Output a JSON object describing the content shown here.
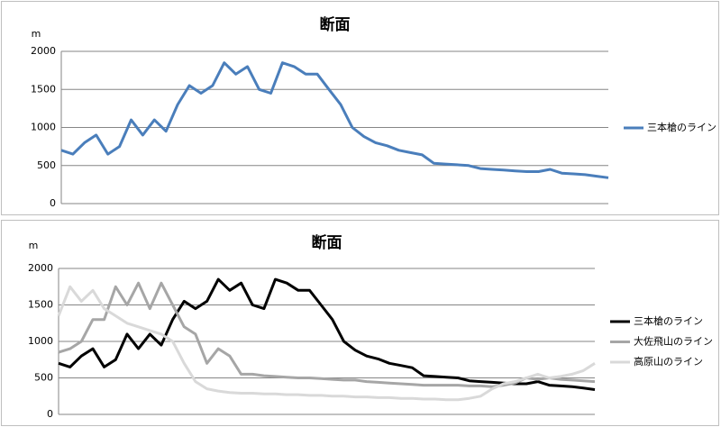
{
  "chart_data": [
    {
      "type": "line",
      "title": "断面",
      "y_label": "m",
      "ylim": [
        0,
        2000
      ],
      "yticks": [
        0,
        500,
        1000,
        1500,
        2000
      ],
      "grid": true,
      "legend": "right",
      "series": [
        {
          "name": "三本槍のライン",
          "color": "#4a7ebb",
          "values": [
            700,
            650,
            800,
            900,
            650,
            750,
            1100,
            900,
            1100,
            950,
            1300,
            1550,
            1450,
            1550,
            1850,
            1700,
            1800,
            1500,
            1450,
            1850,
            1800,
            1700,
            1700,
            1500,
            1300,
            1000,
            880,
            800,
            760,
            700,
            670,
            640,
            530,
            520,
            510,
            500,
            460,
            450,
            440,
            430,
            420,
            420,
            450,
            400,
            390,
            380,
            360,
            340
          ]
        }
      ]
    },
    {
      "type": "line",
      "title": "断面",
      "y_label": "m",
      "ylim": [
        0,
        2000
      ],
      "yticks": [
        0,
        500,
        1000,
        1500,
        2000
      ],
      "grid": true,
      "legend": "right",
      "series": [
        {
          "name": "三本槍のライン",
          "color": "#000000",
          "values": [
            700,
            650,
            800,
            900,
            650,
            750,
            1100,
            900,
            1100,
            950,
            1300,
            1550,
            1450,
            1550,
            1850,
            1700,
            1800,
            1500,
            1450,
            1850,
            1800,
            1700,
            1700,
            1500,
            1300,
            1000,
            880,
            800,
            760,
            700,
            670,
            640,
            530,
            520,
            510,
            500,
            460,
            450,
            440,
            430,
            420,
            420,
            450,
            400,
            390,
            380,
            360,
            340
          ]
        },
        {
          "name": "大佐飛山のライン",
          "color": "#a6a6a6",
          "values": [
            850,
            900,
            1000,
            1300,
            1300,
            1750,
            1500,
            1800,
            1450,
            1800,
            1500,
            1200,
            1100,
            700,
            900,
            800,
            550,
            550,
            530,
            520,
            510,
            500,
            500,
            490,
            480,
            470,
            470,
            450,
            440,
            430,
            420,
            410,
            400,
            400,
            400,
            400,
            390,
            390,
            380,
            400,
            430,
            500,
            480,
            500,
            480,
            470,
            460,
            450
          ]
        },
        {
          "name": "高原山のライン",
          "color": "#d9d9d9",
          "values": [
            1350,
            1750,
            1550,
            1700,
            1450,
            1350,
            1250,
            1200,
            1150,
            1100,
            1000,
            700,
            450,
            350,
            320,
            300,
            290,
            290,
            280,
            280,
            270,
            270,
            260,
            260,
            250,
            250,
            240,
            240,
            230,
            230,
            220,
            220,
            210,
            210,
            200,
            200,
            220,
            250,
            350,
            420,
            450,
            500,
            550,
            500,
            520,
            550,
            600,
            700
          ]
        }
      ]
    }
  ]
}
